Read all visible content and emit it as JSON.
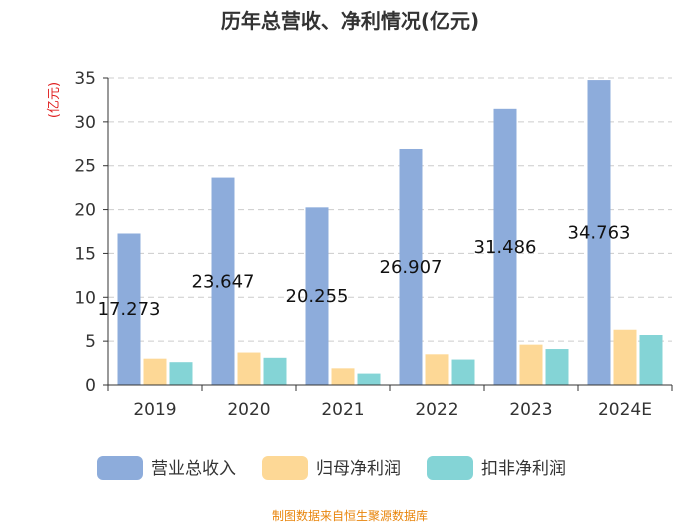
{
  "chart_data": {
    "type": "bar",
    "title": "历年总营收、净利情况(亿元)",
    "ylabel": "(亿元)",
    "xlabel": "",
    "ylim": [
      0,
      35
    ],
    "yticks": [
      0,
      5,
      10,
      15,
      20,
      25,
      30,
      35
    ],
    "grid": true,
    "legend_position": "bottom",
    "categories": [
      "2019",
      "2020",
      "2021",
      "2022",
      "2023",
      "2024E"
    ],
    "series": [
      {
        "name": "营业总收入",
        "color": "#8dacdb",
        "values": [
          17.273,
          23.647,
          20.255,
          26.907,
          31.486,
          34.763
        ]
      },
      {
        "name": "归母净利润",
        "color": "#fdd896",
        "values": [
          3.0,
          3.7,
          1.9,
          3.5,
          4.6,
          6.3
        ]
      },
      {
        "name": "扣非净利润",
        "color": "#84d4d6",
        "values": [
          2.6,
          3.1,
          1.3,
          2.9,
          4.1,
          5.7
        ]
      }
    ],
    "data_labels": [
      "17.273",
      "23.647",
      "20.255",
      "26.907",
      "31.486",
      "34.763"
    ],
    "source": "制图数据来自恒生聚源数据库"
  }
}
